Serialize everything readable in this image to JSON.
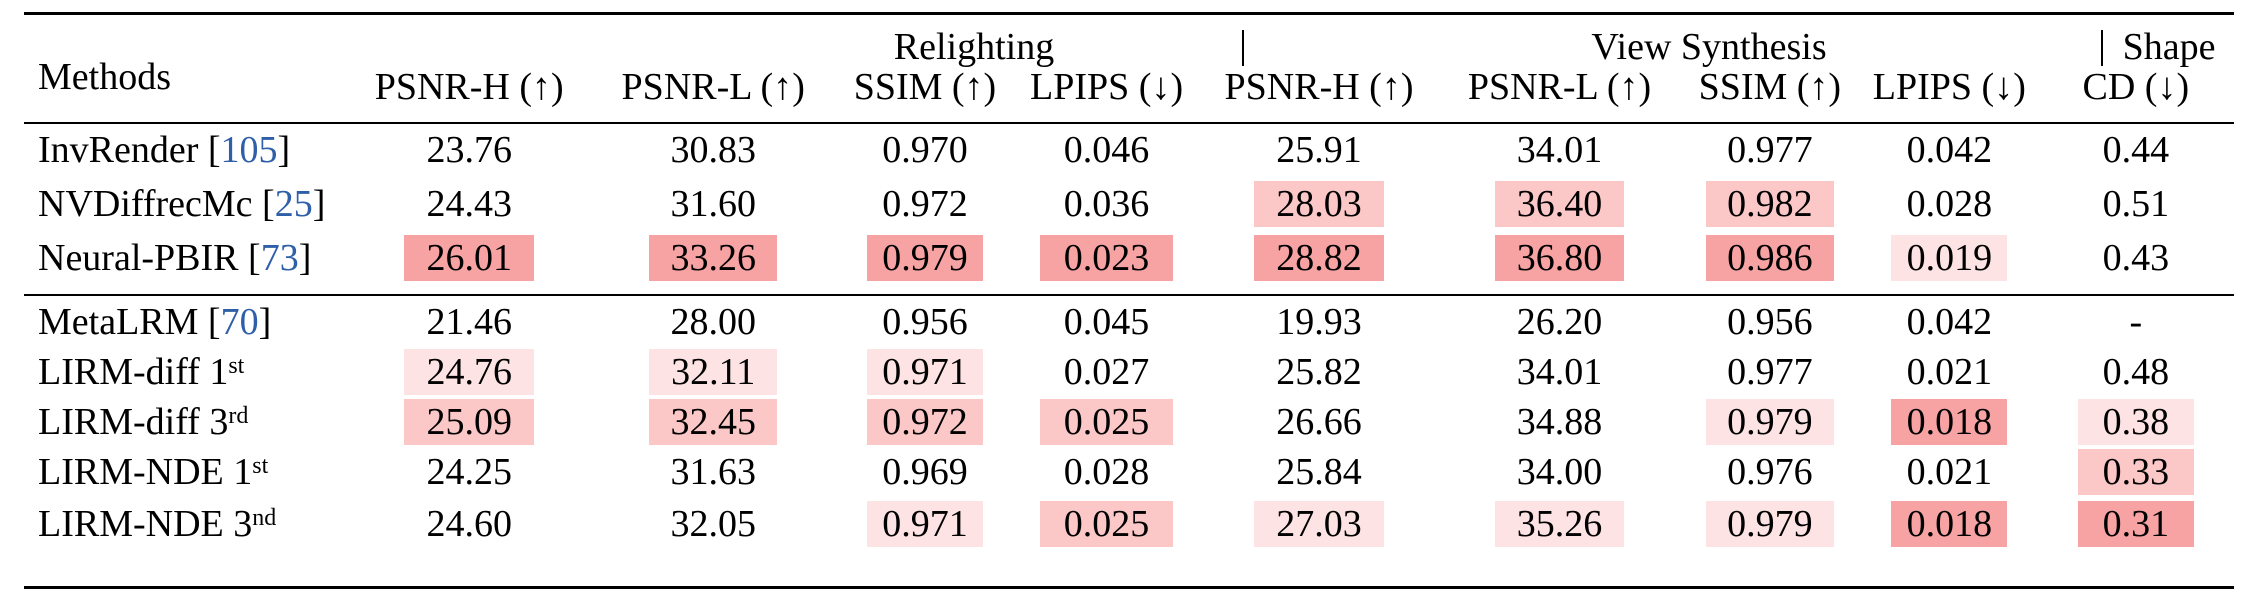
{
  "table": {
    "groups": {
      "relighting": "Relighting",
      "view_synthesis": "View Synthesis",
      "shape": "Shape"
    },
    "columns": [
      "Methods",
      "PSNR-H (↑)",
      "PSNR-L (↑)",
      "SSIM (↑)",
      "LPIPS (↓)",
      "PSNR-H (↑)",
      "PSNR-L (↑)",
      "SSIM (↑)",
      "LPIPS (↓)",
      "CD (↓)"
    ],
    "highlight_colors": {
      "best": "#f7a3a3",
      "second": "#fbc7c7",
      "third": "#fde3e3"
    },
    "rows": [
      {
        "name": "InvRender [",
        "cite": "105",
        "name_end": "]",
        "sup": "",
        "values": [
          "23.76",
          "30.83",
          "0.970",
          "0.046",
          "25.91",
          "34.01",
          "0.977",
          "0.042",
          "0.44"
        ],
        "hl": [
          "",
          "",
          "",
          "",
          "",
          "",
          "",
          "",
          ""
        ]
      },
      {
        "name": "NVDiffrecMc [",
        "cite": "25",
        "name_end": "]",
        "sup": "",
        "values": [
          "24.43",
          "31.60",
          "0.972",
          "0.036",
          "28.03",
          "36.40",
          "0.982",
          "0.028",
          "0.51"
        ],
        "hl": [
          "",
          "",
          "",
          "",
          "second",
          "second",
          "second",
          "",
          ""
        ]
      },
      {
        "name": "Neural-PBIR [",
        "cite": "73",
        "name_end": "]",
        "sup": "",
        "values": [
          "26.01",
          "33.26",
          "0.979",
          "0.023",
          "28.82",
          "36.80",
          "0.986",
          "0.019",
          "0.43"
        ],
        "hl": [
          "best",
          "best",
          "best",
          "best",
          "best",
          "best",
          "best",
          "third",
          ""
        ]
      },
      {
        "name": "MetaLRM [",
        "cite": "70",
        "name_end": "]",
        "sup": "",
        "values": [
          "21.46",
          "28.00",
          "0.956",
          "0.045",
          "19.93",
          "26.20",
          "0.956",
          "0.042",
          "-"
        ],
        "hl": [
          "",
          "",
          "",
          "",
          "",
          "",
          "",
          "",
          ""
        ]
      },
      {
        "name": "LIRM-diff 1",
        "cite": "",
        "name_end": "",
        "sup": "st",
        "values": [
          "24.76",
          "32.11",
          "0.971",
          "0.027",
          "25.82",
          "34.01",
          "0.977",
          "0.021",
          "0.48"
        ],
        "hl": [
          "third",
          "third",
          "third",
          "",
          "",
          "",
          "",
          "",
          ""
        ]
      },
      {
        "name": "LIRM-diff 3",
        "cite": "",
        "name_end": "",
        "sup": "rd",
        "values": [
          "25.09",
          "32.45",
          "0.972",
          "0.025",
          "26.66",
          "34.88",
          "0.979",
          "0.018",
          "0.38"
        ],
        "hl": [
          "second",
          "second",
          "second",
          "second",
          "",
          "",
          "third",
          "best",
          "third"
        ]
      },
      {
        "name": "LIRM-NDE 1",
        "cite": "",
        "name_end": "",
        "sup": "st",
        "values": [
          "24.25",
          "31.63",
          "0.969",
          "0.028",
          "25.84",
          "34.00",
          "0.976",
          "0.021",
          "0.33"
        ],
        "hl": [
          "",
          "",
          "",
          "",
          "",
          "",
          "",
          "",
          "second"
        ]
      },
      {
        "name": "LIRM-NDE 3",
        "cite": "",
        "name_end": "",
        "sup": "nd",
        "values": [
          "24.60",
          "32.05",
          "0.971",
          "0.025",
          "27.03",
          "35.26",
          "0.979",
          "0.018",
          "0.31"
        ],
        "hl": [
          "",
          "",
          "third",
          "second",
          "third",
          "third",
          "third",
          "best",
          "best"
        ]
      }
    ]
  }
}
